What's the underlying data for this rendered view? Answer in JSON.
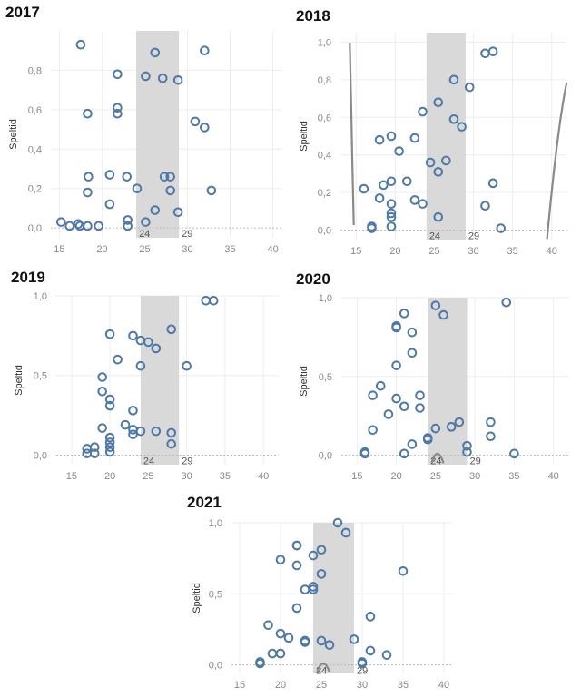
{
  "colors": {
    "point": "#4e79a7",
    "trend": "#8a8a8a",
    "band": "#d9d9d9",
    "grid": "#eeeeee",
    "zero": "#bbbbbb"
  },
  "chart_data": [
    {
      "type": "scatter",
      "title": "2017",
      "ylabel": "Speltid",
      "xlim": [
        14,
        41
      ],
      "ylim": [
        -0.05,
        1.0
      ],
      "xticks": [
        15,
        20,
        25,
        30,
        35,
        40
      ],
      "yticks": [
        0.0,
        0.2,
        0.4,
        0.6,
        0.8
      ],
      "ytick_labels": [
        "0,0",
        "0,2",
        "0,4",
        "0,6",
        "0,8"
      ],
      "band": [
        24,
        29
      ],
      "band_labels": [
        "24",
        "29"
      ],
      "trend_coef": [
        -0.0061,
        0.06256,
        -0.7866
      ],
      "points": [
        [
          15.2,
          0.03
        ],
        [
          16.2,
          0.01
        ],
        [
          17.2,
          0.02
        ],
        [
          17.4,
          0.01
        ],
        [
          18.3,
          0.01
        ],
        [
          19.6,
          0.01
        ],
        [
          17.5,
          0.93
        ],
        [
          18.3,
          0.58
        ],
        [
          18.4,
          0.26
        ],
        [
          18.3,
          0.18
        ],
        [
          20.9,
          0.12
        ],
        [
          20.9,
          0.27
        ],
        [
          21.8,
          0.78
        ],
        [
          21.8,
          0.61
        ],
        [
          21.8,
          0.58
        ],
        [
          22.9,
          0.26
        ],
        [
          23.0,
          0.04
        ],
        [
          23.0,
          0.01
        ],
        [
          24.1,
          0.2
        ],
        [
          25.1,
          0.77
        ],
        [
          25.1,
          0.03
        ],
        [
          26.2,
          0.89
        ],
        [
          26.2,
          0.09
        ],
        [
          27.1,
          0.76
        ],
        [
          27.3,
          0.26
        ],
        [
          28.0,
          0.26
        ],
        [
          28.0,
          0.19
        ],
        [
          28.9,
          0.75
        ],
        [
          28.9,
          0.08
        ],
        [
          30.9,
          0.54
        ],
        [
          32.0,
          0.9
        ],
        [
          32.0,
          0.51
        ],
        [
          32.8,
          0.19
        ]
      ]
    },
    {
      "type": "scatter",
      "title": "2018",
      "ylabel": "Speltid",
      "xlim": [
        13,
        42
      ],
      "ylim": [
        -0.05,
        1.05
      ],
      "xticks": [
        15,
        20,
        25,
        30,
        35,
        40
      ],
      "yticks": [
        0.0,
        0.2,
        0.4,
        0.6,
        0.8,
        1.0
      ],
      "ytick_labels": [
        "0,0",
        "0,2",
        "0,4",
        "0,6",
        "0,8",
        "1,0"
      ],
      "band": [
        24,
        29
      ],
      "band_labels": [
        "24",
        "29"
      ],
      "trend_coef": [
        -0.00233,
        0.06124,
        0.1307,
        -7.67
      ],
      "points": [
        [
          16.0,
          0.22
        ],
        [
          17.0,
          0.02
        ],
        [
          17.0,
          0.01
        ],
        [
          18.0,
          0.48
        ],
        [
          18.0,
          0.17
        ],
        [
          18.5,
          0.24
        ],
        [
          19.5,
          0.5
        ],
        [
          19.5,
          0.26
        ],
        [
          19.5,
          0.14
        ],
        [
          19.5,
          0.09
        ],
        [
          19.5,
          0.07
        ],
        [
          19.5,
          0.02
        ],
        [
          20.5,
          0.42
        ],
        [
          21.5,
          0.26
        ],
        [
          22.5,
          0.49
        ],
        [
          22.5,
          0.16
        ],
        [
          23.5,
          0.63
        ],
        [
          23.5,
          0.14
        ],
        [
          24.5,
          0.36
        ],
        [
          25.5,
          0.68
        ],
        [
          25.5,
          0.31
        ],
        [
          25.5,
          0.07
        ],
        [
          26.5,
          0.37
        ],
        [
          27.5,
          0.8
        ],
        [
          27.5,
          0.59
        ],
        [
          28.5,
          0.55
        ],
        [
          29.5,
          0.76
        ],
        [
          31.5,
          0.94
        ],
        [
          31.5,
          0.13
        ],
        [
          32.5,
          0.95
        ],
        [
          32.5,
          0.25
        ],
        [
          33.5,
          0.01
        ]
      ]
    },
    {
      "type": "scatter",
      "title": "2019",
      "ylabel": "Speltid",
      "xlim": [
        13,
        42
      ],
      "ylim": [
        -0.06,
        1.0
      ],
      "xticks": [
        15,
        20,
        25,
        30,
        35,
        40
      ],
      "yticks": [
        0.0,
        0.5,
        1.0
      ],
      "ytick_labels": [
        "0,0",
        "0,5",
        "1,0"
      ],
      "band": [
        24,
        29
      ],
      "band_labels": [
        "24",
        "29"
      ],
      "trend_coef": [
        -0.00657,
        0.0769,
        -0.7637
      ],
      "points": [
        [
          17.0,
          0.04
        ],
        [
          17.0,
          0.01
        ],
        [
          18.0,
          0.05
        ],
        [
          18.0,
          0.01
        ],
        [
          19.0,
          0.49
        ],
        [
          19.0,
          0.4
        ],
        [
          19.0,
          0.17
        ],
        [
          20.0,
          0.76
        ],
        [
          20.0,
          0.35
        ],
        [
          20.0,
          0.31
        ],
        [
          20.0,
          0.11
        ],
        [
          20.0,
          0.08
        ],
        [
          20.0,
          0.05
        ],
        [
          20.0,
          0.02
        ],
        [
          21.0,
          0.6
        ],
        [
          22.0,
          0.19
        ],
        [
          23.0,
          0.75
        ],
        [
          23.0,
          0.28
        ],
        [
          23.0,
          0.16
        ],
        [
          23.0,
          0.13
        ],
        [
          24.0,
          0.72
        ],
        [
          24.0,
          0.56
        ],
        [
          24.0,
          0.15
        ],
        [
          25.0,
          0.71
        ],
        [
          26.0,
          0.67
        ],
        [
          26.0,
          0.15
        ],
        [
          28.0,
          0.79
        ],
        [
          28.0,
          0.14
        ],
        [
          28.0,
          0.07
        ],
        [
          30.0,
          0.56
        ],
        [
          32.5,
          0.97
        ],
        [
          33.5,
          0.97
        ]
      ]
    },
    {
      "type": "scatter",
      "title": "2020",
      "ylabel": "Speltid",
      "xlim": [
        13,
        42
      ],
      "ylim": [
        -0.06,
        1.0
      ],
      "xticks": [
        15,
        20,
        25,
        30,
        35,
        40
      ],
      "yticks": [
        0.0,
        0.5,
        1.0
      ],
      "ytick_labels": [
        "0,0",
        "0,5",
        "1,0"
      ],
      "band": [
        24,
        29
      ],
      "band_labels": [
        "24",
        "29"
      ],
      "trend_coef": [
        0.0047,
        -0.1079,
        0.0486,
        0.0044
      ],
      "points": [
        [
          16.0,
          0.02
        ],
        [
          16.0,
          0.01
        ],
        [
          17.0,
          0.38
        ],
        [
          17.0,
          0.16
        ],
        [
          18.0,
          0.44
        ],
        [
          19.0,
          0.26
        ],
        [
          20.0,
          0.82
        ],
        [
          20.0,
          0.81
        ],
        [
          20.0,
          0.57
        ],
        [
          20.0,
          0.36
        ],
        [
          21.0,
          0.9
        ],
        [
          21.0,
          0.31
        ],
        [
          21.0,
          0.01
        ],
        [
          22.0,
          0.78
        ],
        [
          22.0,
          0.65
        ],
        [
          22.0,
          0.07
        ],
        [
          23.0,
          0.38
        ],
        [
          23.0,
          0.3
        ],
        [
          24.0,
          0.11
        ],
        [
          24.0,
          0.1
        ],
        [
          25.0,
          0.95
        ],
        [
          25.0,
          0.17
        ],
        [
          26.0,
          0.89
        ],
        [
          27.0,
          0.18
        ],
        [
          28.0,
          0.21
        ],
        [
          29.0,
          0.06
        ],
        [
          29.0,
          0.02
        ],
        [
          32.0,
          0.21
        ],
        [
          32.0,
          0.12
        ],
        [
          34.0,
          0.97
        ],
        [
          35.0,
          0.01
        ]
      ]
    },
    {
      "type": "scatter",
      "title": "2021",
      "ylabel": "Speltid",
      "xlim": [
        14,
        41
      ],
      "ylim": [
        -0.06,
        1.0
      ],
      "xticks": [
        15,
        20,
        25,
        30,
        35,
        40
      ],
      "yticks": [
        0.0,
        0.5,
        1.0
      ],
      "ytick_labels": [
        "0,0",
        "0,5",
        "1,0"
      ],
      "band": [
        24,
        29
      ],
      "band_labels": [
        "24",
        "29"
      ],
      "trend_coef": [
        0.0047,
        -0.1079,
        0.0486,
        0.0044
      ],
      "points": [
        [
          17.5,
          0.02
        ],
        [
          17.5,
          0.01
        ],
        [
          18.5,
          0.28
        ],
        [
          19.0,
          0.08
        ],
        [
          20.0,
          0.74
        ],
        [
          20.0,
          0.22
        ],
        [
          20.0,
          0.08
        ],
        [
          21.0,
          0.19
        ],
        [
          22.0,
          0.84
        ],
        [
          22.0,
          0.84
        ],
        [
          22.0,
          0.7
        ],
        [
          22.0,
          0.4
        ],
        [
          23.0,
          0.53
        ],
        [
          23.0,
          0.17
        ],
        [
          23.0,
          0.16
        ],
        [
          24.0,
          0.77
        ],
        [
          24.0,
          0.55
        ],
        [
          24.0,
          0.53
        ],
        [
          25.0,
          0.81
        ],
        [
          25.0,
          0.64
        ],
        [
          25.0,
          0.17
        ],
        [
          26.0,
          0.14
        ],
        [
          27.0,
          1.0
        ],
        [
          28.0,
          0.93
        ],
        [
          29.0,
          0.18
        ],
        [
          30.0,
          0.02
        ],
        [
          30.0,
          0.01
        ],
        [
          31.0,
          0.34
        ],
        [
          31.0,
          0.1
        ],
        [
          33.0,
          0.07
        ],
        [
          35.0,
          0.66
        ]
      ]
    }
  ]
}
